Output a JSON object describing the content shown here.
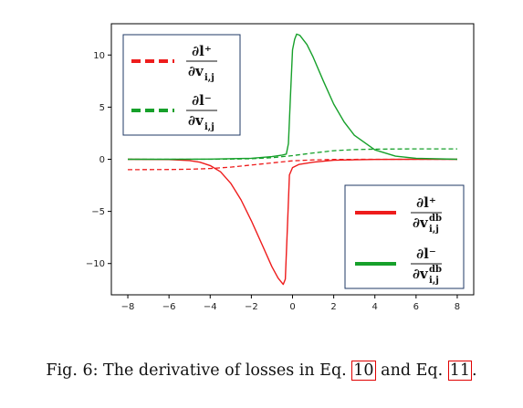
{
  "chart_data": {
    "type": "line",
    "xlim": [
      -8.8,
      8.8
    ],
    "ylim": [
      -13,
      13
    ],
    "xticks": [
      -8,
      -6,
      -4,
      -2,
      0,
      2,
      4,
      6,
      8
    ],
    "yticks": [
      10,
      5,
      0,
      -5,
      -10
    ],
    "grid": false,
    "colors": {
      "red": "#ee1c1c",
      "green": "#16a02a"
    },
    "legends": [
      {
        "placement": "top-left",
        "entries": [
          {
            "style": "dashed",
            "color": "red",
            "numerator": "∂l⁺",
            "denominator": "∂v",
            "sub": "i,j",
            "sup": ""
          },
          {
            "style": "dashed",
            "color": "green",
            "numerator": "∂l⁻",
            "denominator": "∂v",
            "sub": "i,j",
            "sup": ""
          }
        ]
      },
      {
        "placement": "lower-right",
        "entries": [
          {
            "style": "solid",
            "color": "red",
            "numerator": "∂l⁺",
            "denominator": "∂v",
            "sub": "i,j",
            "sup": "db"
          },
          {
            "style": "solid",
            "color": "green",
            "numerator": "∂l⁻",
            "denominator": "∂v",
            "sub": "i,j",
            "sup": "db"
          }
        ]
      }
    ],
    "series": [
      {
        "color": "red",
        "style": "dashed",
        "x": [
          -8,
          -6,
          -5,
          -4,
          -3,
          -2,
          -1,
          0,
          1,
          2,
          3,
          4,
          6,
          8
        ],
        "y": [
          -1.0,
          -0.98,
          -0.95,
          -0.88,
          -0.75,
          -0.55,
          -0.35,
          -0.15,
          -0.06,
          -0.02,
          -0.01,
          0,
          0,
          0
        ]
      },
      {
        "color": "green",
        "style": "dashed",
        "x": [
          -8,
          -6,
          -4,
          -3,
          -2,
          -1,
          0,
          1,
          2,
          3,
          4,
          6,
          8
        ],
        "y": [
          0,
          0,
          0,
          0.02,
          0.05,
          0.15,
          0.35,
          0.6,
          0.82,
          0.93,
          0.97,
          1.0,
          1.0
        ]
      },
      {
        "color": "red",
        "style": "solid",
        "x": [
          -8,
          -6,
          -5,
          -4.5,
          -4,
          -3.5,
          -3,
          -2.5,
          -2,
          -1.5,
          -1,
          -0.7,
          -0.45,
          -0.35,
          -0.25,
          -0.15,
          0,
          0.3,
          1,
          2,
          3,
          4,
          6,
          8
        ],
        "y": [
          0,
          -0.03,
          -0.12,
          -0.28,
          -0.6,
          -1.2,
          -2.3,
          -3.9,
          -5.9,
          -8.1,
          -10.3,
          -11.4,
          -12.0,
          -11.5,
          -6.5,
          -1.5,
          -0.8,
          -0.5,
          -0.28,
          -0.1,
          -0.05,
          -0.02,
          0,
          0
        ]
      },
      {
        "color": "green",
        "style": "solid",
        "x": [
          -8,
          -6,
          -4,
          -2,
          -1,
          -0.5,
          -0.3,
          -0.2,
          -0.1,
          0,
          0.1,
          0.2,
          0.35,
          0.7,
          1,
          1.5,
          2,
          2.5,
          3,
          4,
          5,
          6,
          8
        ],
        "y": [
          0,
          0,
          0.02,
          0.1,
          0.25,
          0.4,
          0.5,
          1.5,
          6.0,
          10.5,
          11.5,
          12.0,
          11.9,
          11.0,
          9.8,
          7.5,
          5.3,
          3.6,
          2.3,
          0.9,
          0.3,
          0.1,
          0
        ]
      }
    ]
  },
  "caption": {
    "prefix": "Fig. 6: The derivative of losses in Eq.",
    "ref1": "10",
    "middle": "and Eq.",
    "ref2": "11",
    "suffix": "."
  }
}
